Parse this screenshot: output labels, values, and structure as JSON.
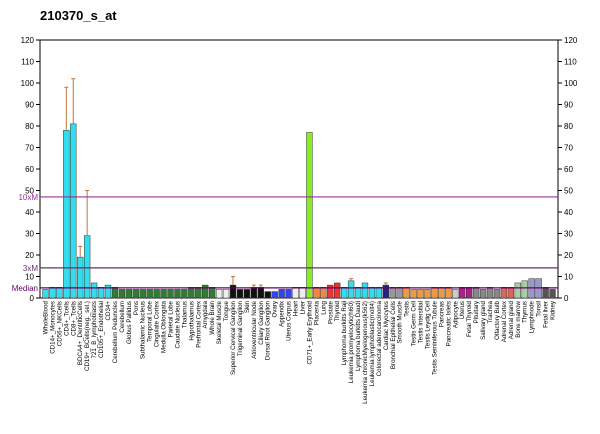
{
  "chart_data": {
    "type": "bar",
    "title": "210370_s_at",
    "categories": [
      "WholeBlood",
      "CD14+_Monocytes",
      "CD56+_NKCells",
      "CD4+_Tcells",
      "CD8+_Tcells",
      "BDCA4+_DentriticCells",
      "CD19+_BCells(neg._sel.)",
      "721_B_lymphoblasts",
      "CD105+_Endothelial",
      "CD34+",
      "Cerebellum Peduncles",
      "Cerebellum",
      "Globus Pallidus",
      "Pons",
      "Subthalamic Nucleus",
      "Temporal Lobe",
      "Cingulate Cortex",
      "Medulla Oblongata",
      "Parietal Lobe",
      "Caudate Nucleus",
      "Thalamus",
      "Hypothalamus",
      "Prefrontal Cortex",
      "Amygdala",
      "Whole Brain",
      "Skeletal Muscle",
      "Tongue",
      "Superior Cervical Ganglion",
      "Trigeminal Ganglion",
      "Skin",
      "Atrioventricular Node",
      "Ciliary Ganglion",
      "Dorsal Root Ganglion",
      "Ovary",
      "Appendix",
      "Uterus Corpus",
      "Heart",
      "Liver",
      "CD71+_Early Erythroid",
      "Placenta",
      "Lung",
      "Prostate",
      "Thyroid",
      "Lymphoma burkitts Raji",
      "Leukemia promyelocytic(hl60)",
      "Lymphoma burkitts Daudi",
      "Leukemia chronicMyelogenous(k562)",
      "Leukemia lymphoblastic(molt4)",
      "Colorectal adenocarcinoma",
      "Cardiac Myocytes",
      "Bronchial Epithelial Cells",
      "Smooth Muscle",
      "Testis",
      "Testis Germ Cell",
      "Testis Intersitial",
      "Testis Leydig Cell",
      "Testis Seminiferous Tubule",
      "Pancreas",
      "Pancreatic Islets",
      "Adipocyte",
      "Uterus",
      "Fetal Thyroid",
      "Pituitary",
      "Salivary gland",
      "Trachea",
      "Olfactory Bulb",
      "Adrenal Cortex",
      "Adrenal gland",
      "Bone marrow",
      "Thymus",
      "Lymphnode",
      "Tonsil",
      "Fetal liver",
      "Kidney"
    ],
    "values": [
      4,
      5,
      5,
      78,
      81,
      19,
      29,
      7,
      5,
      6,
      5,
      4,
      4,
      4,
      4,
      4,
      4,
      4,
      4,
      4,
      4,
      5,
      5,
      6,
      5,
      4,
      4,
      6,
      4,
      4,
      5,
      5,
      3,
      3,
      4,
      4,
      5,
      5,
      77,
      5,
      5,
      6,
      7,
      5,
      8,
      5,
      7,
      5,
      5,
      6,
      5,
      5,
      5,
      4,
      4,
      4,
      5,
      5,
      5,
      4,
      5,
      5,
      5,
      4,
      5,
      4,
      5,
      5,
      7,
      8,
      9,
      9,
      5,
      4
    ],
    "errors": [
      null,
      null,
      null,
      20,
      21,
      5,
      21,
      null,
      null,
      null,
      null,
      null,
      null,
      null,
      null,
      null,
      null,
      null,
      null,
      null,
      null,
      null,
      null,
      null,
      null,
      null,
      null,
      4,
      null,
      null,
      1,
      1,
      null,
      null,
      null,
      null,
      null,
      null,
      null,
      null,
      null,
      null,
      null,
      null,
      1,
      null,
      null,
      null,
      null,
      1,
      null,
      null,
      null,
      null,
      null,
      null,
      null,
      null,
      null,
      null,
      null,
      null,
      null,
      null,
      null,
      null,
      null,
      null,
      null,
      null,
      null,
      null,
      null,
      null
    ],
    "colors": [
      "#33ddee",
      "#33ddee",
      "#33ddee",
      "#33ddee",
      "#33ddee",
      "#33ddee",
      "#33ddee",
      "#33ddee",
      "#33ddee",
      "#33ddee",
      "#2e7d32",
      "#2e7d32",
      "#2e7d32",
      "#2e7d32",
      "#2e7d32",
      "#2e7d32",
      "#2e7d32",
      "#2e7d32",
      "#2e7d32",
      "#2e7d32",
      "#2e7d32",
      "#2e7d32",
      "#2e7d32",
      "#2e7d32",
      "#2e7d32",
      "#eeeeee",
      "#eeeeee",
      "#111111",
      "#111111",
      "#111111",
      "#111111",
      "#111111",
      "#111111",
      "#3344ee",
      "#3344ee",
      "#3344ee",
      "#eeeeee",
      "#eeeeee",
      "#88ee22",
      "#ee8844",
      "#ee8844",
      "#ee3333",
      "#ee3333",
      "#33ddee",
      "#33ddee",
      "#33ddee",
      "#33ddee",
      "#33ddee",
      "#33ddee",
      "#222288",
      "#999999",
      "#999999",
      "#ee9944",
      "#ee9944",
      "#ee9944",
      "#ee9944",
      "#ee9944",
      "#ee9944",
      "#ee9944",
      "#cccccc",
      "#aa2288",
      "#aa2288",
      "#888888",
      "#888888",
      "#888888",
      "#888888",
      "#dd6655",
      "#dd6655",
      "#aaccaa",
      "#aaccaa",
      "#9999cc",
      "#9999cc",
      "#555555",
      "#555555"
    ],
    "ylim": [
      0,
      120
    ],
    "yticks": [
      0,
      10,
      20,
      30,
      40,
      50,
      60,
      70,
      80,
      90,
      100,
      110,
      120
    ],
    "y2lim": [
      0,
      120
    ],
    "y2ticks": [
      0,
      10,
      20,
      30,
      40,
      50,
      60,
      70,
      80,
      90,
      100,
      110,
      120
    ],
    "reference_lines": [
      {
        "label": "10xM",
        "value": 47,
        "color": "#993399"
      },
      {
        "label": "3xM",
        "value": 14,
        "color": "#663366"
      },
      {
        "label": "Median",
        "value": 4.7,
        "color": "#660066"
      }
    ]
  }
}
